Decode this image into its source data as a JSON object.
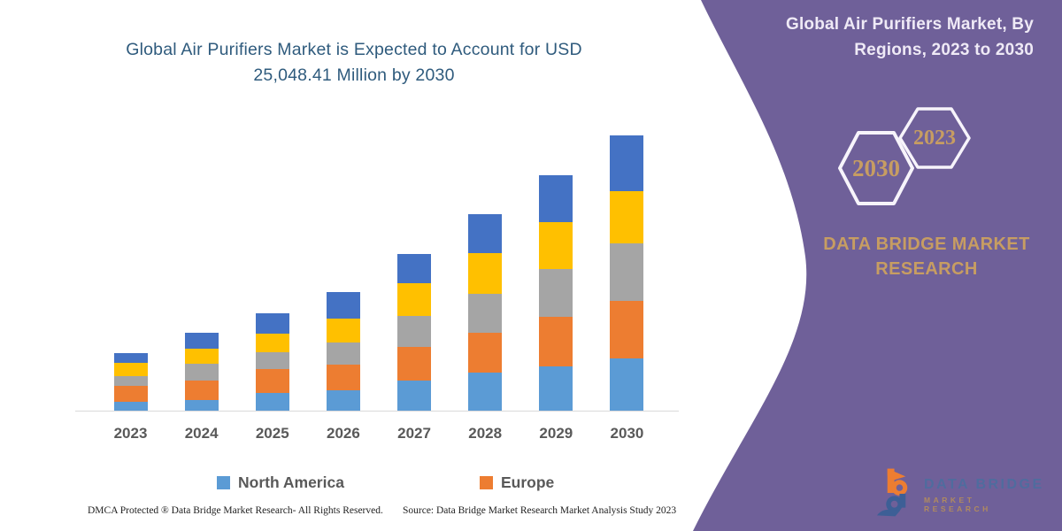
{
  "colors": {
    "panel_purple": "#6F6099",
    "title_blue": "#2F5B7D",
    "gold_text": "#C79D62",
    "axis_text": "#595959",
    "baseline_gray": "#DADADA",
    "hexagon_stroke": "#F7F4FB"
  },
  "left_section": {
    "title": "Global Air Purifiers Market is Expected to Account for USD 25,048.41 Million by 2030",
    "footer_left": "DMCA Protected ® Data Bridge Market Research-  All Rights Reserved.",
    "footer_right": "Source: Data Bridge Market Research  Market Analysis Study 2023"
  },
  "legend": {
    "items": [
      {
        "label": "North America",
        "color": "#5B9BD5"
      },
      {
        "label": "Europe",
        "color": "#ED7D31"
      }
    ]
  },
  "chart_data": {
    "type": "bar",
    "stacked": true,
    "title": "Global Air Purifiers Market is Expected to Account for USD 25,048.41 Million by 2030",
    "unit": "USD Million",
    "categories": [
      "2023",
      "2024",
      "2025",
      "2026",
      "2027",
      "2028",
      "2029",
      "2030"
    ],
    "series": [
      {
        "name": "North America",
        "color": "#5B9BD5",
        "legend_visible": true,
        "values": [
          806,
          935,
          1653,
          1895,
          2741,
          3467,
          4007,
          4757
        ]
      },
      {
        "name": "Europe",
        "color": "#ED7D31",
        "legend_visible": true,
        "values": [
          1475,
          1830,
          2177,
          2282,
          3039,
          3652,
          4515,
          5240
        ]
      },
      {
        "name": "Series 3 (gray, legend not shown)",
        "color": "#A5A5A5",
        "legend_visible": false,
        "values": [
          887,
          1475,
          1532,
          2072,
          2870,
          3547,
          4378,
          5240
        ]
      },
      {
        "name": "Series 4 (yellow, legend not shown)",
        "color": "#FFC000",
        "legend_visible": false,
        "values": [
          1209,
          1403,
          1693,
          2177,
          2959,
          3684,
          4273,
          4757
        ]
      },
      {
        "name": "Series 5 (dark blue, legend not shown)",
        "color": "#4472C4",
        "legend_visible": false,
        "values": [
          887,
          1419,
          1854,
          2362,
          2636,
          3572,
          4249,
          5054.41
        ]
      }
    ],
    "stack_order": "bottom-to-top as listed",
    "totals": [
      5264,
      7062,
      8909,
      10788,
      14245,
      17922,
      21422,
      25048.41
    ],
    "values_estimated_from_pixels": true,
    "anchor": "2030 total equals 25,048.41 USD Million per chart title",
    "x_axis": {
      "labels_visible": true
    },
    "y_axis": {
      "visible": false
    },
    "gridlines": false,
    "legend_position": "bottom"
  },
  "right_panel": {
    "title": "Global Air Purifiers Market, By Regions, 2023 to 2030",
    "hexagon_2030_label": "2030",
    "hexagon_2023_label": "2023",
    "brand_name": "DATA BRIDGE MARKET RESEARCH",
    "logo": {
      "line1": "DATA BRIDGE",
      "line2": "MARKET RESEARCH"
    }
  }
}
